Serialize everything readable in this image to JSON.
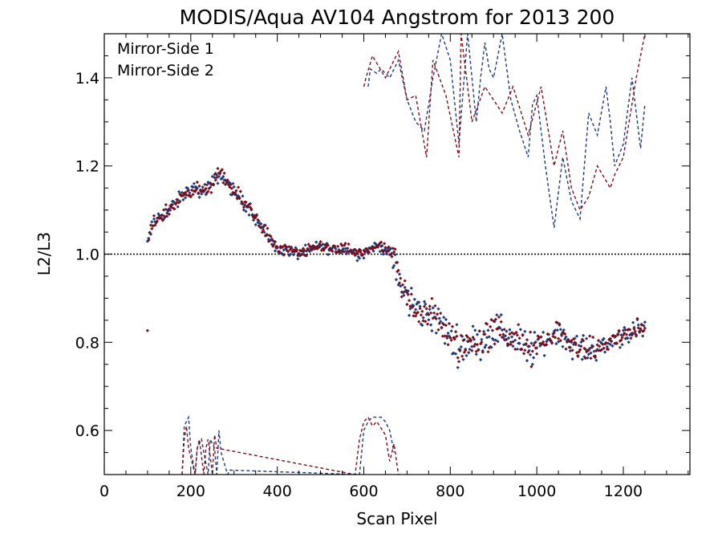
{
  "chart_data": {
    "type": "scatter",
    "title": "MODIS/Aqua AV104 Angstrom for 2013 200",
    "xlabel": "Scan Pixel",
    "ylabel": "L2/L3",
    "xlim": [
      0,
      1354
    ],
    "ylim": [
      0.5,
      1.5
    ],
    "x_ticks": [
      0,
      200,
      400,
      600,
      800,
      1000,
      1200
    ],
    "y_ticks": [
      0.6,
      0.8,
      1.0,
      1.2,
      1.4
    ],
    "x_tick_labels": [
      "0",
      "200",
      "400",
      "600",
      "800",
      "1000",
      "1200"
    ],
    "y_tick_labels": [
      "0.6",
      "0.8",
      "1.0",
      "1.2",
      "1.4"
    ],
    "reference_line": 1.0,
    "legend_position": "top-left",
    "colors": {
      "ms1": "#1f3a7a",
      "ms2": "#7a0f1c"
    },
    "series": [
      {
        "name": "Mirror-Side 1"
      },
      {
        "name": "Mirror-Side 2"
      }
    ],
    "mean_profile": {
      "x": [
        100,
        110,
        120,
        150,
        180,
        200,
        230,
        250,
        265,
        280,
        300,
        320,
        340,
        360,
        380,
        400,
        420,
        450,
        480,
        500,
        530,
        560,
        590,
        610,
        630,
        650,
        665,
        680,
        700,
        730,
        760,
        780,
        800,
        820,
        850,
        880,
        910,
        950,
        980,
        1000,
        1020,
        1050,
        1080,
        1100,
        1120,
        1150,
        1170,
        1200,
        1230,
        1250
      ],
      "y": [
        1.02,
        1.06,
        1.08,
        1.1,
        1.13,
        1.15,
        1.14,
        1.16,
        1.18,
        1.17,
        1.14,
        1.12,
        1.1,
        1.07,
        1.04,
        1.01,
        1.01,
        1.0,
        1.01,
        1.02,
        1.01,
        1.01,
        1.0,
        1.01,
        1.02,
        1.01,
        1.0,
        0.94,
        0.9,
        0.87,
        0.86,
        0.84,
        0.81,
        0.79,
        0.8,
        0.81,
        0.83,
        0.81,
        0.78,
        0.79,
        0.8,
        0.83,
        0.79,
        0.79,
        0.78,
        0.79,
        0.8,
        0.82,
        0.82,
        0.83
      ]
    },
    "dashed_upper_ms1": {
      "x": [
        610,
        615,
        630,
        640,
        660,
        680,
        700,
        720,
        740,
        760,
        780,
        800,
        820,
        840,
        860,
        870,
        880,
        890,
        900,
        920,
        940,
        960,
        980,
        990,
        1000,
        1020,
        1040,
        1060,
        1080,
        1100,
        1110,
        1120,
        1140,
        1160,
        1170,
        1180,
        1200,
        1220,
        1240,
        1250
      ],
      "y": [
        1.38,
        1.42,
        1.41,
        1.42,
        1.4,
        1.44,
        1.35,
        1.3,
        1.28,
        1.4,
        1.5,
        1.44,
        1.25,
        1.5,
        1.3,
        1.4,
        1.48,
        1.42,
        1.4,
        1.5,
        1.35,
        1.28,
        1.22,
        1.34,
        1.36,
        1.2,
        1.06,
        1.22,
        1.12,
        1.08,
        1.2,
        1.32,
        1.27,
        1.38,
        1.3,
        1.2,
        1.25,
        1.4,
        1.24,
        1.34
      ]
    },
    "dashed_upper_ms2": {
      "x": [
        600,
        605,
        620,
        650,
        680,
        700,
        720,
        745,
        760,
        790,
        820,
        825,
        850,
        880,
        920,
        945,
        980,
        1010,
        1040,
        1060,
        1080,
        1100,
        1120,
        1140,
        1170,
        1180,
        1200,
        1230,
        1250
      ],
      "y": [
        1.38,
        1.4,
        1.45,
        1.4,
        1.46,
        1.35,
        1.36,
        1.22,
        1.44,
        1.36,
        1.22,
        1.5,
        1.3,
        1.38,
        1.32,
        1.38,
        1.27,
        1.38,
        1.2,
        1.28,
        1.15,
        1.1,
        1.13,
        1.2,
        1.15,
        1.18,
        1.22,
        1.4,
        1.5
      ]
    },
    "dashed_lower_ms1": {
      "x": [
        180,
        185,
        195,
        200,
        210,
        215,
        225,
        230,
        240,
        245,
        255,
        260,
        265,
        270,
        285,
        290,
        590,
        600,
        610,
        620,
        630,
        640,
        650,
        660,
        670
      ],
      "y": [
        0.5,
        0.61,
        0.63,
        0.56,
        0.5,
        0.56,
        0.58,
        0.55,
        0.5,
        0.58,
        0.56,
        0.5,
        0.6,
        0.55,
        0.5,
        0.51,
        0.5,
        0.6,
        0.62,
        0.63,
        0.63,
        0.63,
        0.62,
        0.6,
        0.55
      ]
    },
    "dashed_lower_ms2": {
      "x": [
        180,
        185,
        190,
        195,
        210,
        215,
        220,
        230,
        235,
        240,
        250,
        255,
        260,
        580,
        590,
        595,
        600,
        610,
        620,
        630,
        650,
        660,
        670,
        680
      ],
      "y": [
        0.5,
        0.58,
        0.61,
        0.56,
        0.5,
        0.56,
        0.58,
        0.5,
        0.56,
        0.58,
        0.5,
        0.59,
        0.56,
        0.5,
        0.58,
        0.6,
        0.62,
        0.63,
        0.61,
        0.62,
        0.59,
        0.53,
        0.57,
        0.5
      ]
    }
  }
}
